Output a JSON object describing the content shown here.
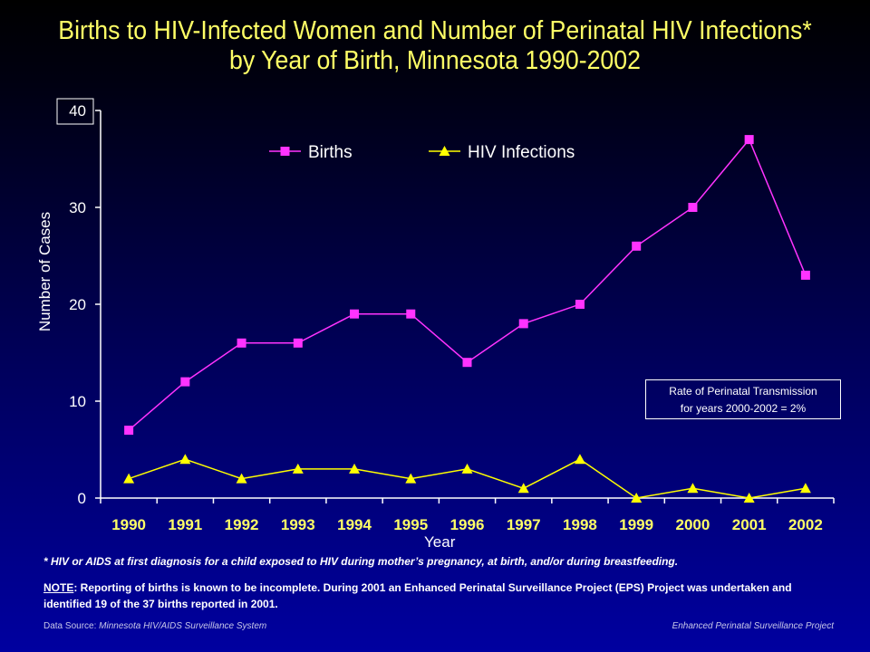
{
  "title": {
    "line1": "Births to HIV-Infected Women and Number of Perinatal HIV Infections*",
    "line2": "by Year of Birth, Minnesota 1990-2002"
  },
  "colors": {
    "title": "#ffff66",
    "births": "#ff33ff",
    "hiv": "#ffff00",
    "axis": "#ffffff"
  },
  "chart_data": {
    "type": "line",
    "x": [
      "1990",
      "1991",
      "1992",
      "1993",
      "1994",
      "1995",
      "1996",
      "1997",
      "1998",
      "1999",
      "2000",
      "2001",
      "2002"
    ],
    "series": [
      {
        "name": "Births",
        "values": [
          7,
          12,
          16,
          16,
          19,
          19,
          14,
          18,
          20,
          26,
          30,
          37,
          23
        ],
        "marker": "square",
        "color": "#ff33ff"
      },
      {
        "name": "HIV Infections",
        "values": [
          2,
          4,
          2,
          3,
          3,
          2,
          3,
          1,
          4,
          0,
          1,
          0,
          1
        ],
        "marker": "triangle",
        "color": "#ffff00"
      }
    ],
    "xlabel": "Year",
    "ylabel": "Number of Cases",
    "ylim": [
      0,
      40
    ],
    "yticks": [
      "0",
      "10",
      "20",
      "30",
      "40"
    ],
    "legend_position": "top",
    "grid": false
  },
  "annotation": {
    "line1": "Rate of Perinatal Transmission",
    "line2": "for years 2000-2002 = 2%"
  },
  "footnote": "* HIV or AIDS at first diagnosis for a child exposed to HIV during mother’s pregnancy, at birth, and/or during breastfeeding.",
  "note": {
    "label": "NOTE",
    "text": ": Reporting of births is known to be incomplete.  During 2001 an Enhanced Perinatal Surveillance Project (EPS) Project was undertaken and identified 19 of the 37 births reported in 2001."
  },
  "source": {
    "left_label": "Data Source: ",
    "left_value": "Minnesota HIV/AIDS Surveillance  System",
    "right": "Enhanced Perinatal Surveillance Project"
  }
}
